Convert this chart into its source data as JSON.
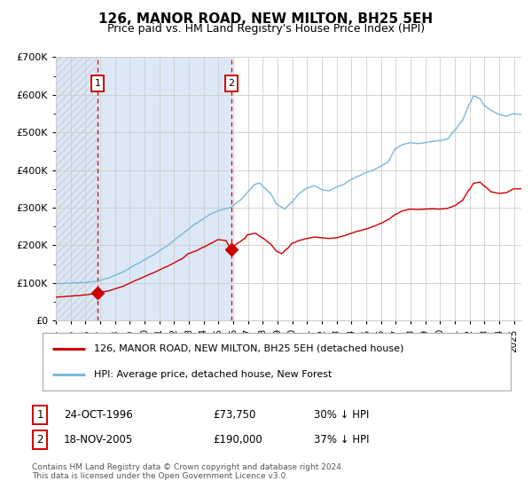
{
  "title": "126, MANOR ROAD, NEW MILTON, BH25 5EH",
  "subtitle": "Price paid vs. HM Land Registry's House Price Index (HPI)",
  "legend_line1": "126, MANOR ROAD, NEW MILTON, BH25 5EH (detached house)",
  "legend_line2": "HPI: Average price, detached house, New Forest",
  "transaction1_date": "24-OCT-1996",
  "transaction1_price": "£73,750",
  "transaction1_hpi": "30% ↓ HPI",
  "transaction1_year": 1996.82,
  "transaction1_value": 73750,
  "transaction2_date": "18-NOV-2005",
  "transaction2_price": "£190,000",
  "transaction2_hpi": "37% ↓ HPI",
  "transaction2_year": 2005.88,
  "transaction2_value": 190000,
  "footer": "Contains HM Land Registry data © Crown copyright and database right 2024.\nThis data is licensed under the Open Government Licence v3.0.",
  "hpi_color": "#7ab8d9",
  "price_color": "#cc0000",
  "hatched_bg": "#dce8f5",
  "grid_color": "#cccccc",
  "ylim_max": 700000,
  "xlim_start": 1994.0,
  "xlim_end": 2025.5
}
